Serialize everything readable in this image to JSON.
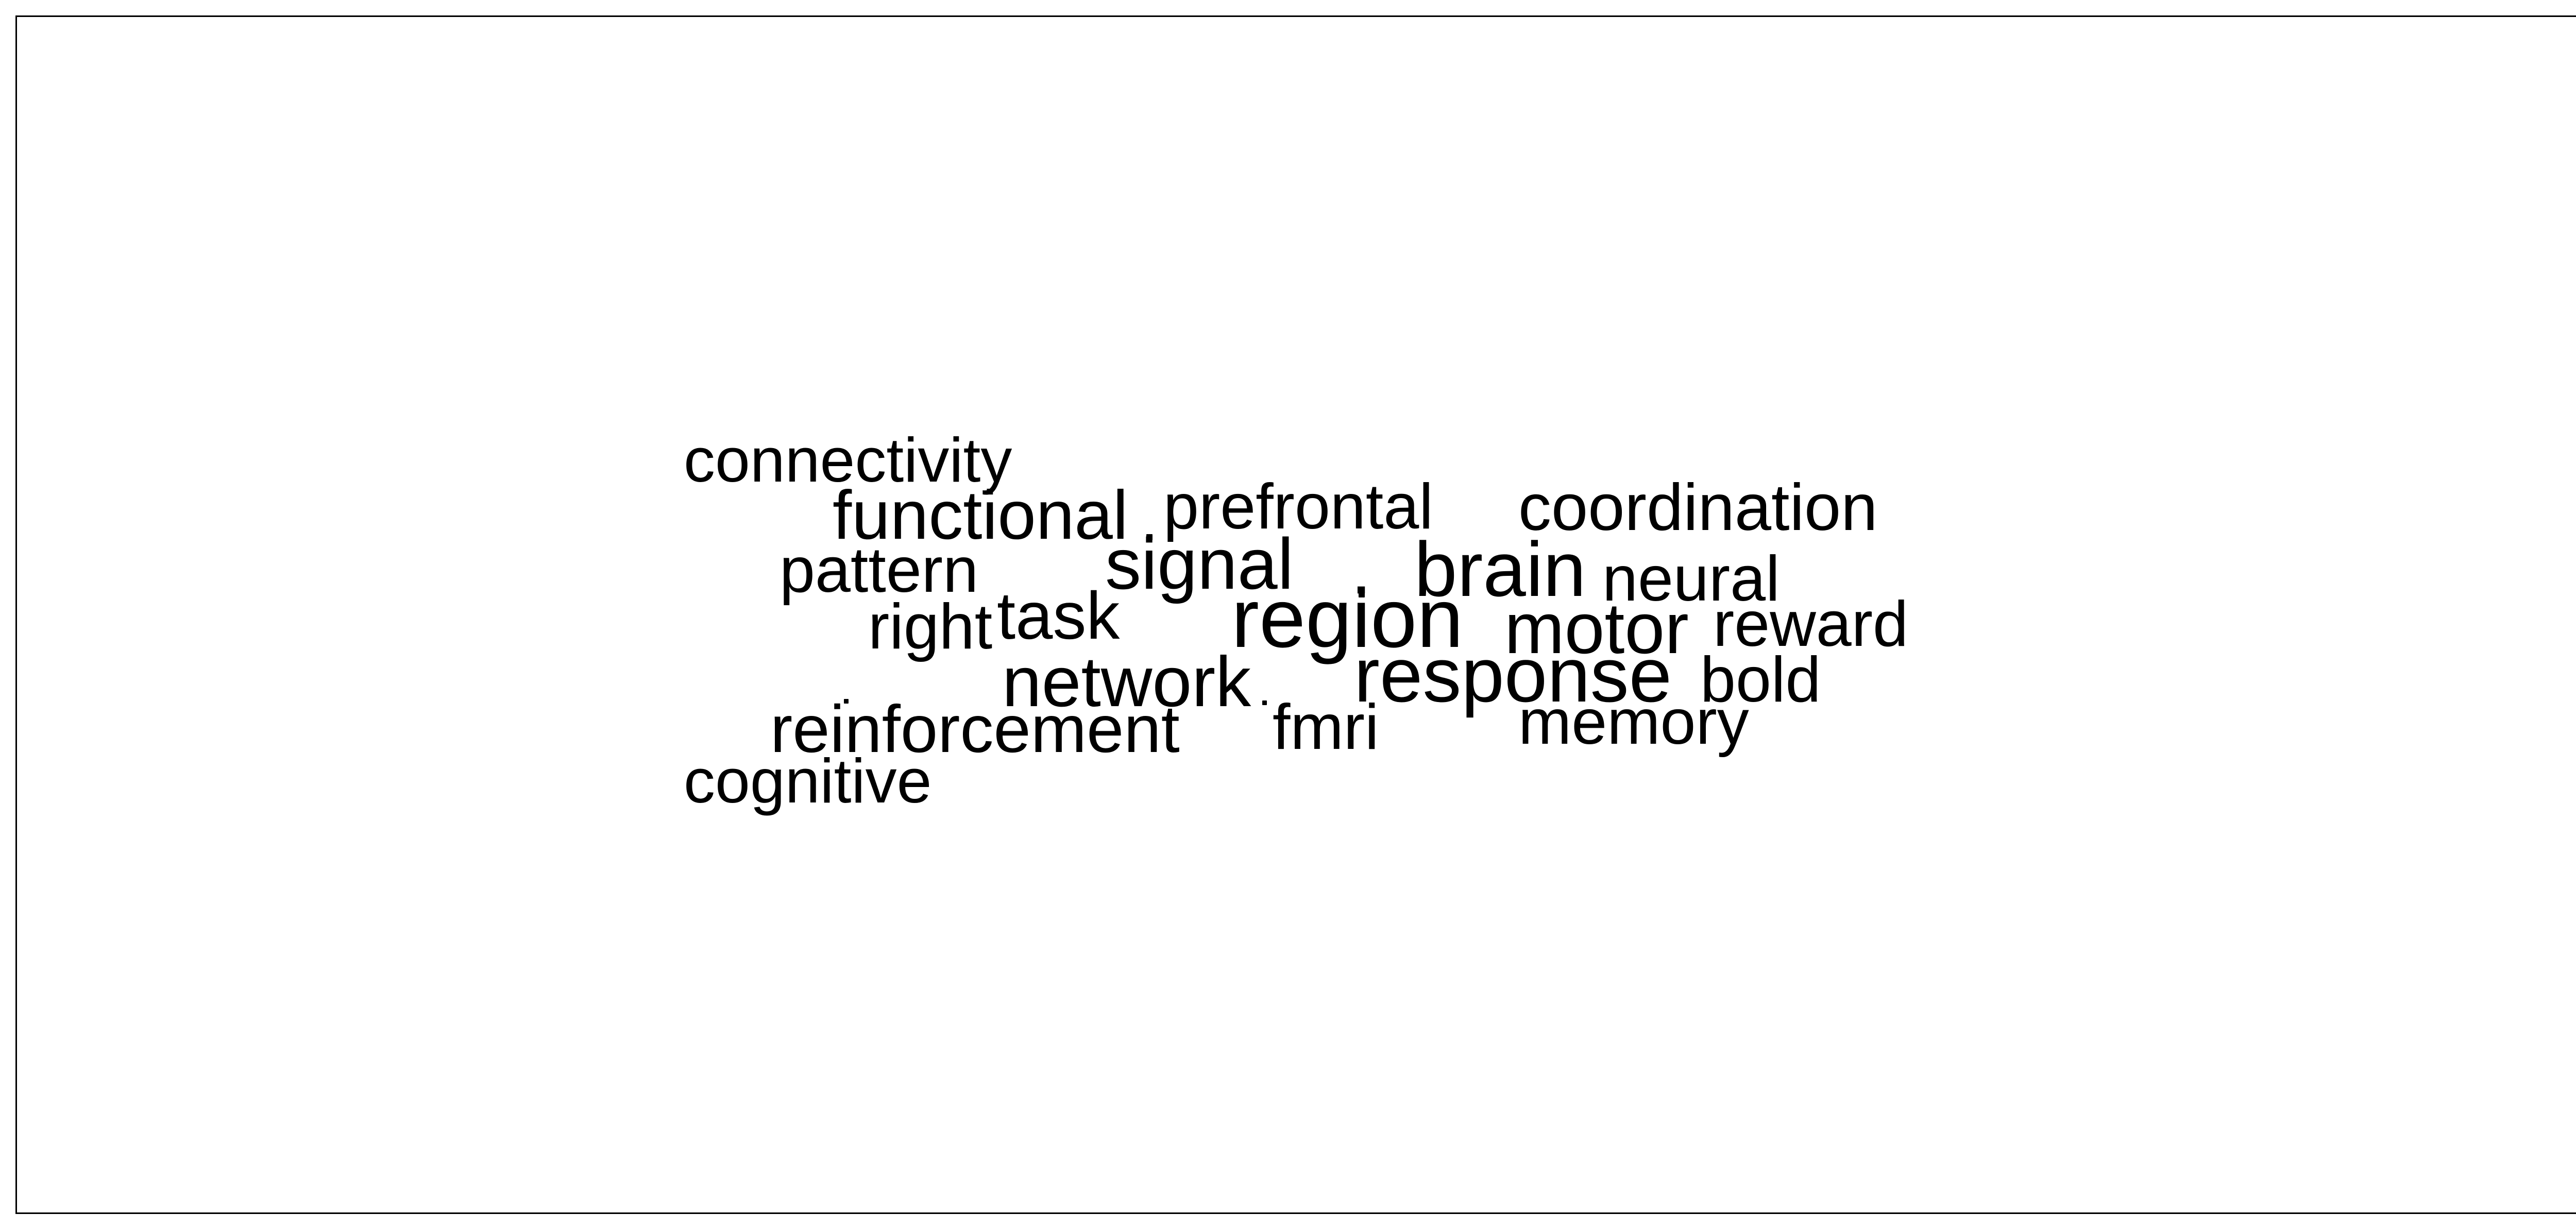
{
  "words": {
    "connectivity": "connectivity",
    "functional": "functional",
    "prefrontal": "prefrontal",
    "coordination": "coordination",
    "pattern": "pattern",
    "signal": "signal",
    "brain": "brain",
    "neural": "neural",
    "right": "right",
    "task": "task",
    "region": "region",
    "motor": "motor",
    "reward": "reward",
    "network": "network",
    "response": "response",
    "bold": "bold",
    "reinforcement": "reinforcement",
    "fmri": "fmri",
    "memory": "memory",
    "cognitive": "cognitive"
  },
  "colors": {
    "text": "#000000",
    "background": "#ffffff",
    "border": "#000000"
  }
}
